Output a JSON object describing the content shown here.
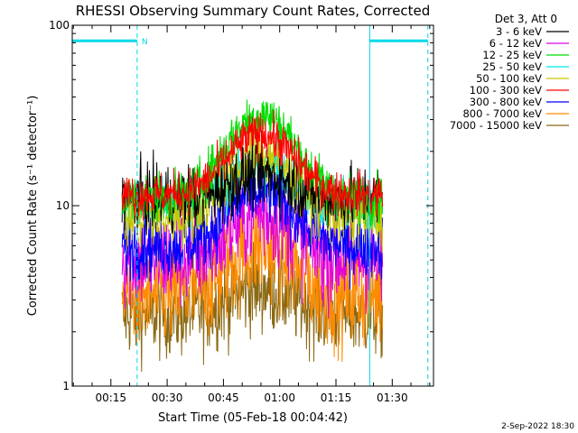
{
  "chart_data": {
    "type": "line",
    "title": "RHESSI Observing Summary Count Rates, Corrected",
    "ylabel": "Corrected Count Rate (s⁻¹ detector⁻¹)",
    "xlabel": "Start Time (05-Feb-18 00:04:42)",
    "y_scale": "log",
    "ylim": [
      1,
      100
    ],
    "xlim_minutes": [
      4.7,
      101.0
    ],
    "y_ticks": [
      {
        "value": 1,
        "label": "1"
      },
      {
        "value": 10,
        "label": "10"
      },
      {
        "value": 100,
        "label": "100"
      }
    ],
    "x_ticks": [
      {
        "minute": 15,
        "label": "00:15"
      },
      {
        "minute": 30,
        "label": "00:30"
      },
      {
        "minute": 45,
        "label": "00:45"
      },
      {
        "minute": 60,
        "label": "01:00"
      },
      {
        "minute": 75,
        "label": "01:15"
      },
      {
        "minute": 90,
        "label": "01:30"
      }
    ],
    "data_range_minutes": [
      18,
      87.5
    ],
    "legend_title": "Det 3, Att 0",
    "legend_position": "top-right",
    "series": [
      {
        "name": "3 - 6 keV",
        "color": "#000000",
        "baseline": 11.0,
        "peak": 15.0,
        "noise": 0.3
      },
      {
        "name": "6 - 12 keV",
        "color": "#e000e0",
        "baseline": 5.0,
        "peak": 9.0,
        "noise": 0.45
      },
      {
        "name": "12 - 25 keV",
        "color": "#00dd00",
        "baseline": 11.0,
        "peak": 32.0,
        "noise": 0.22
      },
      {
        "name": "25 - 50 keV",
        "color": "#00e5e5",
        "baseline": 10.0,
        "peak": 17.0,
        "noise": 0.25
      },
      {
        "name": "50 - 100 keV",
        "color": "#c8c800",
        "baseline": 8.5,
        "peak": 19.0,
        "noise": 0.28
      },
      {
        "name": "100 - 300 keV",
        "color": "#ff0000",
        "baseline": 11.5,
        "peak": 25.0,
        "noise": 0.2
      },
      {
        "name": "300 - 800 keV",
        "color": "#0000ff",
        "baseline": 6.0,
        "peak": 12.0,
        "noise": 0.3
      },
      {
        "name": "800 - 7000 keV",
        "color": "#ff8c00",
        "baseline": 3.2,
        "peak": 6.0,
        "noise": 0.5
      },
      {
        "name": "7000 - 15000 keV",
        "color": "#8b6914",
        "baseline": 2.5,
        "peak": 3.5,
        "noise": 0.4
      }
    ],
    "annotations": {
      "night_marker": "N",
      "marker_color": "#00d8e8",
      "night_start_minute": 4.7,
      "night_end_minute": 22.0,
      "day_start_minute": 84.0,
      "night2_start_minute": 99.5,
      "marker_level": 82
    }
  },
  "footer": {
    "date": "2-Sep-2022 18:30"
  }
}
